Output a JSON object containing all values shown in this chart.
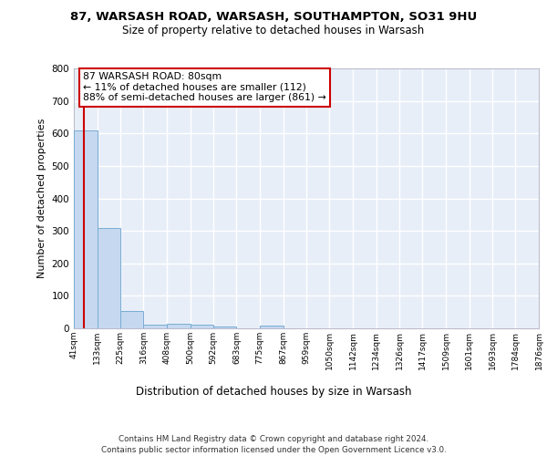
{
  "title1": "87, WARSASH ROAD, WARSASH, SOUTHAMPTON, SO31 9HU",
  "title2": "Size of property relative to detached houses in Warsash",
  "xlabel": "Distribution of detached houses by size in Warsash",
  "ylabel": "Number of detached properties",
  "bin_edges": [
    41,
    133,
    225,
    316,
    408,
    500,
    592,
    683,
    775,
    867,
    959,
    1050,
    1142,
    1234,
    1326,
    1417,
    1509,
    1601,
    1693,
    1784,
    1876
  ],
  "bar_heights": [
    608,
    310,
    52,
    10,
    13,
    10,
    5,
    0,
    8,
    0,
    0,
    0,
    0,
    0,
    0,
    0,
    0,
    0,
    0,
    0
  ],
  "bar_color": "#c5d8f0",
  "bar_edge_color": "#7aadd4",
  "background_color": "#e8eef8",
  "grid_color": "#ffffff",
  "red_line_x": 80,
  "annotation_text": "87 WARSASH ROAD: 80sqm\n← 11% of detached houses are smaller (112)\n88% of semi-detached houses are larger (861) →",
  "annotation_box_color": "#ffffff",
  "annotation_box_edge": "#cc0000",
  "footer1": "Contains HM Land Registry data © Crown copyright and database right 2024.",
  "footer2": "Contains public sector information licensed under the Open Government Licence v3.0.",
  "ylim": [
    0,
    800
  ],
  "yticks": [
    0,
    100,
    200,
    300,
    400,
    500,
    600,
    700,
    800
  ]
}
